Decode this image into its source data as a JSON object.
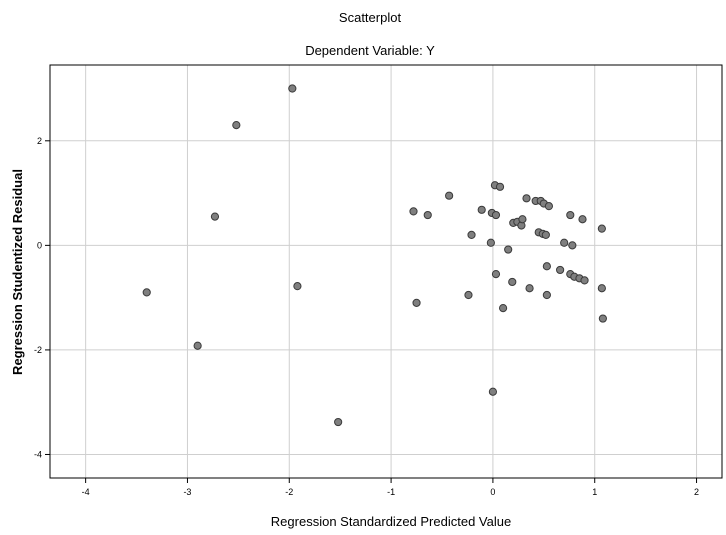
{
  "chart_data": {
    "type": "scatter",
    "title": "Scatterplot",
    "subtitle": "Dependent Variable: Y",
    "xlabel": "Regression Standardized Predicted Value",
    "ylabel": "Regression Studentized Residual",
    "xlim": [
      -4.35,
      2.25
    ],
    "ylim": [
      -4.45,
      3.45
    ],
    "xticks": [
      -4,
      -3,
      -2,
      -1,
      0,
      1,
      2
    ],
    "yticks": [
      -4,
      -2,
      0,
      2
    ],
    "xtick_labels": [
      "-4",
      "-3",
      "-2",
      "-1",
      "0",
      "1",
      "2"
    ],
    "ytick_labels": [
      "-4",
      "-2",
      "0",
      "2"
    ],
    "grid": true,
    "marker_color": "#7f7f7f",
    "marker_edge": "#3a3a3a",
    "points": [
      {
        "x": -3.4,
        "y": -0.9
      },
      {
        "x": -2.9,
        "y": -1.92
      },
      {
        "x": -2.73,
        "y": 0.55
      },
      {
        "x": -2.52,
        "y": 2.3
      },
      {
        "x": -1.97,
        "y": 3.0
      },
      {
        "x": -1.92,
        "y": -0.78
      },
      {
        "x": -1.52,
        "y": -3.38
      },
      {
        "x": -0.78,
        "y": 0.65
      },
      {
        "x": -0.75,
        "y": -1.1
      },
      {
        "x": -0.64,
        "y": 0.58
      },
      {
        "x": -0.43,
        "y": 0.95
      },
      {
        "x": -0.24,
        "y": -0.95
      },
      {
        "x": -0.21,
        "y": 0.2
      },
      {
        "x": -0.11,
        "y": 0.68
      },
      {
        "x": -0.02,
        "y": 0.05
      },
      {
        "x": -0.01,
        "y": 0.62
      },
      {
        "x": 0.0,
        "y": -2.8
      },
      {
        "x": 0.02,
        "y": 1.15
      },
      {
        "x": 0.03,
        "y": 0.58
      },
      {
        "x": 0.03,
        "y": -0.55
      },
      {
        "x": 0.07,
        "y": 1.12
      },
      {
        "x": 0.1,
        "y": -1.2
      },
      {
        "x": 0.15,
        "y": -0.08
      },
      {
        "x": 0.19,
        "y": -0.7
      },
      {
        "x": 0.2,
        "y": 0.43
      },
      {
        "x": 0.24,
        "y": 0.45
      },
      {
        "x": 0.28,
        "y": 0.38
      },
      {
        "x": 0.29,
        "y": 0.5
      },
      {
        "x": 0.33,
        "y": 0.9
      },
      {
        "x": 0.36,
        "y": -0.82
      },
      {
        "x": 0.42,
        "y": 0.85
      },
      {
        "x": 0.45,
        "y": 0.25
      },
      {
        "x": 0.47,
        "y": 0.85
      },
      {
        "x": 0.49,
        "y": 0.22
      },
      {
        "x": 0.5,
        "y": 0.8
      },
      {
        "x": 0.52,
        "y": 0.2
      },
      {
        "x": 0.53,
        "y": -0.4
      },
      {
        "x": 0.53,
        "y": -0.95
      },
      {
        "x": 0.55,
        "y": 0.75
      },
      {
        "x": 0.66,
        "y": -0.47
      },
      {
        "x": 0.7,
        "y": 0.05
      },
      {
        "x": 0.76,
        "y": 0.58
      },
      {
        "x": 0.76,
        "y": -0.55
      },
      {
        "x": 0.78,
        "y": 0.0
      },
      {
        "x": 0.8,
        "y": -0.6
      },
      {
        "x": 0.85,
        "y": -0.63
      },
      {
        "x": 0.88,
        "y": 0.5
      },
      {
        "x": 0.9,
        "y": -0.67
      },
      {
        "x": 1.07,
        "y": 0.32
      },
      {
        "x": 1.07,
        "y": -0.82
      },
      {
        "x": 1.08,
        "y": -1.4
      }
    ]
  }
}
